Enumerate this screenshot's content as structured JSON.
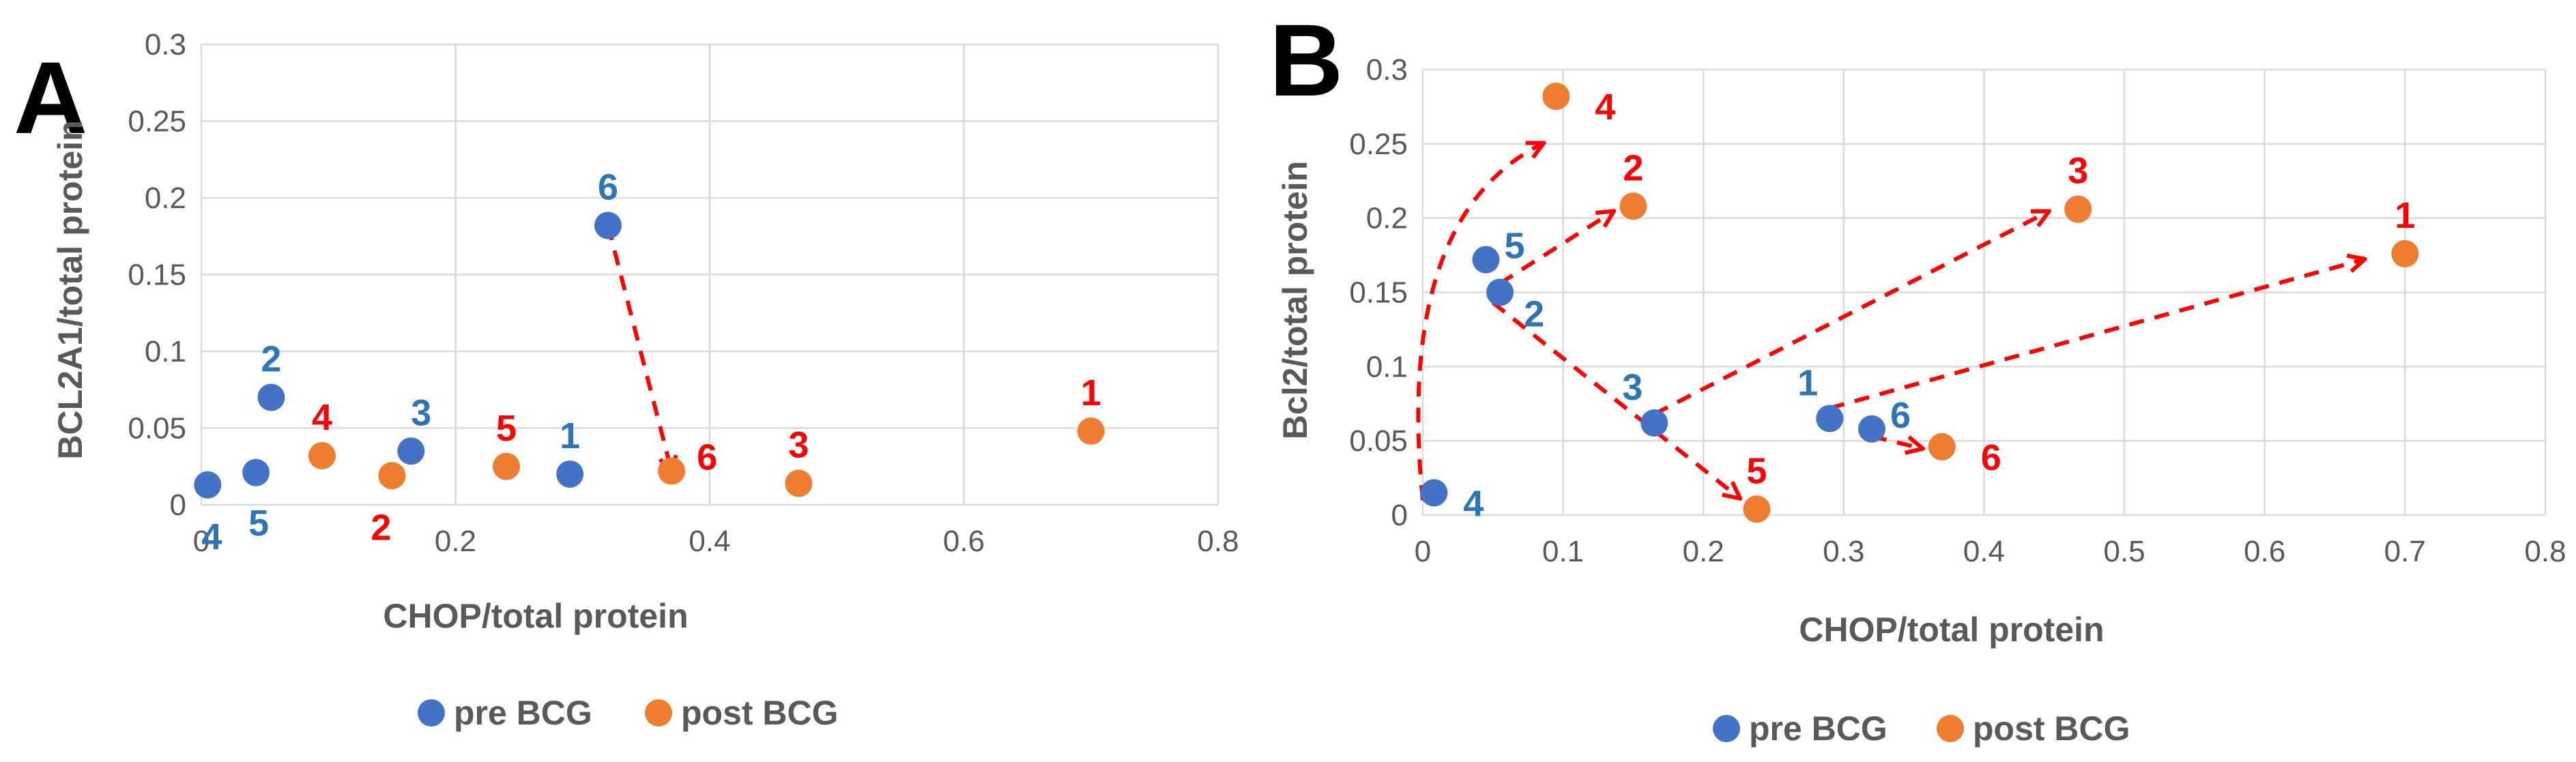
{
  "colors": {
    "pre": "#4472C4",
    "post": "#ED7D31",
    "label_pre": "#2E75B6",
    "label_post": "#FF0000",
    "arrow": "#FF0000"
  },
  "legend": {
    "pre": "pre BCG",
    "post": "post BCG"
  },
  "chart_data": [
    {
      "panel": "A",
      "type": "scatter",
      "xlabel": "CHOP/total protein",
      "ylabel": "BCL2A1/total protein",
      "xlim": [
        0,
        0.8
      ],
      "ylim": [
        0,
        0.3
      ],
      "xticks": [
        "0",
        "0.2",
        "0.4",
        "0.6",
        "0.8"
      ],
      "yticks": [
        "0",
        "0.05",
        "0.1",
        "0.15",
        "0.2",
        "0.25",
        "0.3"
      ],
      "series": [
        {
          "name": "pre BCG",
          "points": [
            {
              "label": "1",
              "x": 0.29,
              "y": 0.02
            },
            {
              "label": "2",
              "x": 0.055,
              "y": 0.07
            },
            {
              "label": "3",
              "x": 0.165,
              "y": 0.035
            },
            {
              "label": "4",
              "x": 0.005,
              "y": 0.013
            },
            {
              "label": "5",
              "x": 0.043,
              "y": 0.021
            },
            {
              "label": "6",
              "x": 0.32,
              "y": 0.182
            }
          ]
        },
        {
          "name": "post BCG",
          "points": [
            {
              "label": "1",
              "x": 0.7,
              "y": 0.048
            },
            {
              "label": "2",
              "x": 0.15,
              "y": 0.019
            },
            {
              "label": "3",
              "x": 0.47,
              "y": 0.014
            },
            {
              "label": "4",
              "x": 0.095,
              "y": 0.032
            },
            {
              "label": "5",
              "x": 0.24,
              "y": 0.025
            },
            {
              "label": "6",
              "x": 0.37,
              "y": 0.022
            }
          ]
        }
      ],
      "arrows": [
        {
          "from": [
            0.32,
            0.182
          ],
          "to": [
            0.37,
            0.022
          ]
        }
      ]
    },
    {
      "panel": "B",
      "type": "scatter",
      "xlabel": "CHOP/total protein",
      "ylabel": "Bcl2/total protein",
      "xlim": [
        0,
        0.8
      ],
      "ylim": [
        0,
        0.3
      ],
      "xticks": [
        "0",
        "0.1",
        "0.2",
        "0.3",
        "0.4",
        "0.5",
        "0.6",
        "0.7",
        "0.8"
      ],
      "yticks": [
        "0",
        "0.05",
        "0.1",
        "0.15",
        "0.2",
        "0.25",
        "0.3"
      ],
      "series": [
        {
          "name": "pre BCG",
          "points": [
            {
              "label": "1",
              "x": 0.29,
              "y": 0.065
            },
            {
              "label": "2",
              "x": 0.055,
              "y": 0.15
            },
            {
              "label": "3",
              "x": 0.165,
              "y": 0.062
            },
            {
              "label": "4",
              "x": 0.008,
              "y": 0.015
            },
            {
              "label": "5",
              "x": 0.045,
              "y": 0.172
            },
            {
              "label": "6",
              "x": 0.32,
              "y": 0.058
            }
          ]
        },
        {
          "name": "post BCG",
          "points": [
            {
              "label": "1",
              "x": 0.7,
              "y": 0.176
            },
            {
              "label": "2",
              "x": 0.15,
              "y": 0.208
            },
            {
              "label": "3",
              "x": 0.467,
              "y": 0.206
            },
            {
              "label": "4",
              "x": 0.095,
              "y": 0.282
            },
            {
              "label": "5",
              "x": 0.238,
              "y": 0.004
            },
            {
              "label": "6",
              "x": 0.37,
              "y": 0.046
            }
          ]
        }
      ],
      "arrows": [
        {
          "from": [
            0.29,
            0.072
          ],
          "to": [
            0.67,
            0.172
          ]
        },
        {
          "from": [
            0.165,
            0.068
          ],
          "to": [
            0.445,
            0.204
          ]
        },
        {
          "from": [
            0.055,
            0.156
          ],
          "to": [
            0.135,
            0.204
          ]
        },
        {
          "from": [
            0.05,
            0.143
          ],
          "to": [
            0.225,
            0.012
          ]
        },
        {
          "from": [
            0.32,
            0.053
          ],
          "to": [
            0.355,
            0.045
          ]
        }
      ],
      "curve_arrow": {
        "from": [
          0.0,
          0.01
        ],
        "control": [
          -0.02,
          0.2
        ],
        "to": [
          0.085,
          0.25
        ]
      }
    }
  ]
}
